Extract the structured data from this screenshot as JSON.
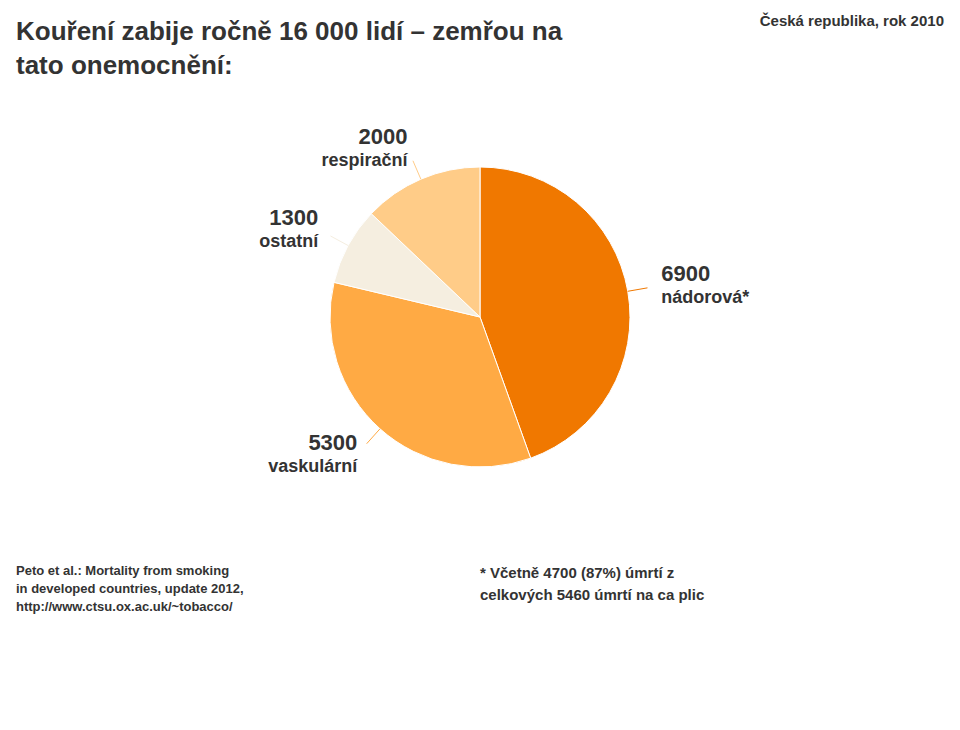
{
  "chart_data": {
    "type": "pie",
    "title": "Kouření zabije ročně 16 000 lidí – zemřou na\ntato onemocnění:",
    "subtitle": "Česká republika, rok 2010",
    "categories": [
      "nádorová*",
      "vaskulární",
      "ostatní",
      "respirační"
    ],
    "values": [
      6900,
      5300,
      1300,
      2000
    ],
    "colors": [
      "#F07800",
      "#FFAA44",
      "#F5EEE0",
      "#FFCC88"
    ],
    "data_labels": true,
    "annotations": [
      "Peto et al.: Mortality from smoking\nin developed countries, update 2012,\nhttp://www.ctsu.ox.ac.uk/~tobacco/",
      "* Včetně 4700 (87%) úmrtí z",
      "celkových 5460 úmrtí na ca plic"
    ]
  }
}
